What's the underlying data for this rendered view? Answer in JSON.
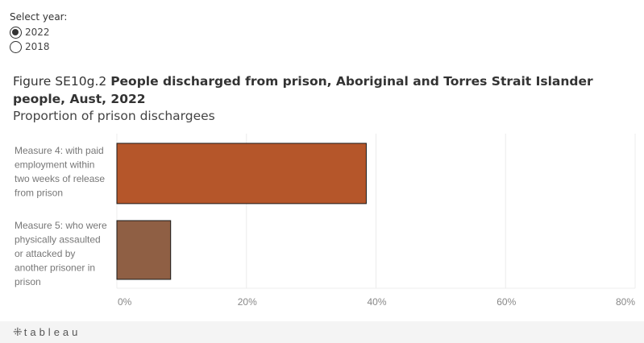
{
  "selector": {
    "label": "Select year:",
    "options": [
      {
        "label": "2022",
        "selected": true
      },
      {
        "label": "2018",
        "selected": false
      }
    ]
  },
  "title": {
    "prefix": "Figure SE10g.2",
    "main": "People discharged from prison, Aboriginal and Torres Strait Islander people, Aust, 2022",
    "subtitle": "Proportion of prison dischargees"
  },
  "chart_data": {
    "type": "bar",
    "orientation": "horizontal",
    "categories": [
      [
        "Measure 4: with paid",
        "employment within",
        "two weeks of release",
        "from prison"
      ],
      [
        "Measure 5: who were",
        "physically assaulted",
        "or attacked by",
        "another prisoner in",
        "prison"
      ]
    ],
    "values": [
      38.5,
      8.3
    ],
    "colors": [
      "#b5562a",
      "#8f5f44"
    ],
    "xlim": [
      0,
      80
    ],
    "ticks": [
      "0%",
      "20%",
      "40%",
      "60%",
      "80%"
    ],
    "tick_values": [
      0,
      20,
      40,
      60,
      80
    ],
    "grid": true
  },
  "footer": {
    "logo_text": "tableau",
    "logo_icon": "tableau-plus-icon"
  }
}
